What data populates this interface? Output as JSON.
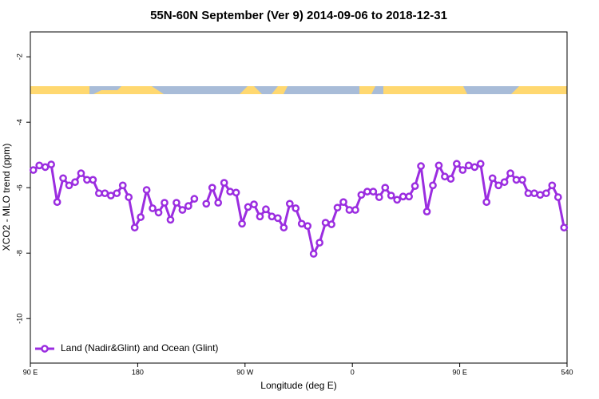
{
  "chart_data": {
    "type": "line",
    "title": "55N-60N September (Ver 9)   2014-09-06 to 2018-12-31",
    "x_label": "Longitude (deg E)",
    "y_label": "XCO2 - MLO trend (ppm)",
    "xlim": [
      90,
      540
    ],
    "ylim": [
      -11.36,
      -1.24
    ],
    "xticks": [
      {
        "value": 90,
        "label": "90 E"
      },
      180,
      {
        "value": 270,
        "label": "90 W"
      },
      {
        "value": 360,
        "label": "0"
      },
      {
        "value": 450,
        "label": "90 E"
      },
      540
    ],
    "yticks": [
      -2,
      -4,
      -6,
      -8,
      -10
    ],
    "legend": "bottom-left",
    "x": [
      92.5,
      97.5,
      102.5,
      107.5,
      112.5,
      117.5,
      122.5,
      127.5,
      132.5,
      137.5,
      142.5,
      147.5,
      152.5,
      157.5,
      162.5,
      167.5,
      172.5,
      177.5,
      182.5,
      187.5,
      192.5,
      197.5,
      202.5,
      207.5,
      212.5,
      217.5,
      222.5,
      227.5,
      232.5,
      237.5,
      242.5,
      247.5,
      252.5,
      257.5,
      262.5,
      267.5,
      272.5,
      277.5,
      282.5,
      287.5,
      292.5,
      297.5,
      302.5,
      307.5,
      312.5,
      317.5,
      322.5,
      327.5,
      332.5,
      337.5,
      342.5,
      347.5,
      352.5,
      357.5,
      362.5,
      367.5,
      372.5,
      377.5,
      382.5,
      387.5,
      392.5,
      397.5,
      402.5,
      407.5,
      412.5,
      417.5,
      422.5,
      427.5,
      432.5,
      437.5,
      442.5,
      447.5,
      452.5,
      457.5,
      462.5,
      467.5,
      472.5,
      477.5,
      482.5,
      487.5,
      492.5,
      497.5,
      502.5,
      507.5,
      512.5,
      517.5,
      522.5,
      527.5,
      532.5,
      537.5
    ],
    "series": [
      {
        "name": "Land (Nadir&Glint) and Ocean (Glint)",
        "color": "#9b2de0",
        "values": [
          -5.46,
          -5.32,
          -5.37,
          -5.29,
          -6.44,
          -5.71,
          -5.93,
          -5.83,
          -5.56,
          -5.76,
          -5.76,
          -6.17,
          -6.17,
          -6.24,
          -6.17,
          -5.93,
          -6.29,
          -7.22,
          -6.9,
          -6.07,
          -6.63,
          -6.76,
          -6.46,
          -6.98,
          -6.46,
          -6.68,
          -6.56,
          -6.34,
          null,
          -6.49,
          -6.0,
          -6.46,
          -5.85,
          -6.12,
          -6.15,
          -7.1,
          -6.59,
          -6.51,
          -6.88,
          -6.66,
          -6.88,
          -6.93,
          -7.22,
          -6.49,
          -6.63,
          -7.1,
          -7.17,
          -8.02,
          -7.68,
          -7.07,
          -7.12,
          -6.61,
          -6.44,
          -6.68,
          -6.68,
          -6.22,
          -6.12,
          -6.12,
          -6.29,
          -6.0,
          -6.24,
          -6.37,
          -6.27,
          -6.27,
          -5.95,
          -5.34,
          -6.73,
          -5.93,
          -5.32,
          -5.66,
          -5.73,
          -5.27,
          -5.46,
          -5.32,
          -5.37,
          -5.27,
          -6.44,
          -5.71,
          -5.93,
          -5.83,
          -5.56,
          -5.76,
          -5.76,
          -6.17,
          -6.17,
          -6.22,
          -6.17,
          -5.93,
          -6.29,
          -7.22
        ]
      }
    ]
  }
}
